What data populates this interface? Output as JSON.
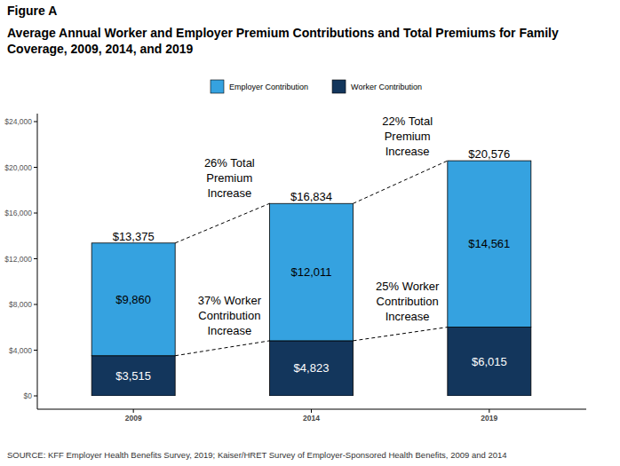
{
  "chart_data": {
    "type": "bar",
    "stacked": true,
    "title": "Figure A",
    "subtitle": "Average Annual Worker and Employer Premium Contributions and Total Premiums for Family Coverage, 2009, 2014, and 2019",
    "source": "SOURCE: KFF Employer Health Benefits Survey, 2019; Kaiser/HRET Survey of Employer-Sponsored Health Benefits, 2009 and 2014",
    "categories": [
      "2009",
      "2014",
      "2019"
    ],
    "series": [
      {
        "name": "Worker Contribution",
        "color": "#13365c",
        "values": [
          3515,
          4823,
          6015
        ],
        "value_labels": [
          "$3,515",
          "$4,823",
          "$6,015"
        ]
      },
      {
        "name": "Employer Contribution",
        "color": "#35a2e0",
        "values": [
          9860,
          12011,
          14561
        ],
        "value_labels": [
          "$9,860",
          "$12,011",
          "$14,561"
        ]
      }
    ],
    "totals": [
      13375,
      16834,
      20576
    ],
    "total_labels": [
      "$13,375",
      "$16,834",
      "$20,576"
    ],
    "annotations": [
      {
        "lines": [
          "26% Total",
          "Premium",
          "Increase"
        ],
        "from": "2009",
        "to": "2014",
        "series": "Employer Contribution"
      },
      {
        "lines": [
          "22% Total",
          "Premium",
          "Increase"
        ],
        "from": "2014",
        "to": "2019",
        "series": "Employer Contribution"
      },
      {
        "lines": [
          "37% Worker",
          "Contribution",
          "Increase"
        ],
        "from": "2009",
        "to": "2014",
        "series": "Worker Contribution"
      },
      {
        "lines": [
          "25% Worker",
          "Contribution",
          "Increase"
        ],
        "from": "2014",
        "to": "2019",
        "series": "Worker Contribution"
      }
    ],
    "ylim": [
      0,
      24000
    ],
    "yticks": [
      {
        "value": 0,
        "label": "$0"
      },
      {
        "value": 4000,
        "label": "$4,000"
      },
      {
        "value": 8000,
        "label": "$8,000"
      },
      {
        "value": 12000,
        "label": "$12,000"
      },
      {
        "value": 16000,
        "label": "$16,000"
      },
      {
        "value": 20000,
        "label": "$20,000"
      },
      {
        "value": 24000,
        "label": "$24,000"
      }
    ],
    "grid": false,
    "legend": "top",
    "data_labels": true
  }
}
